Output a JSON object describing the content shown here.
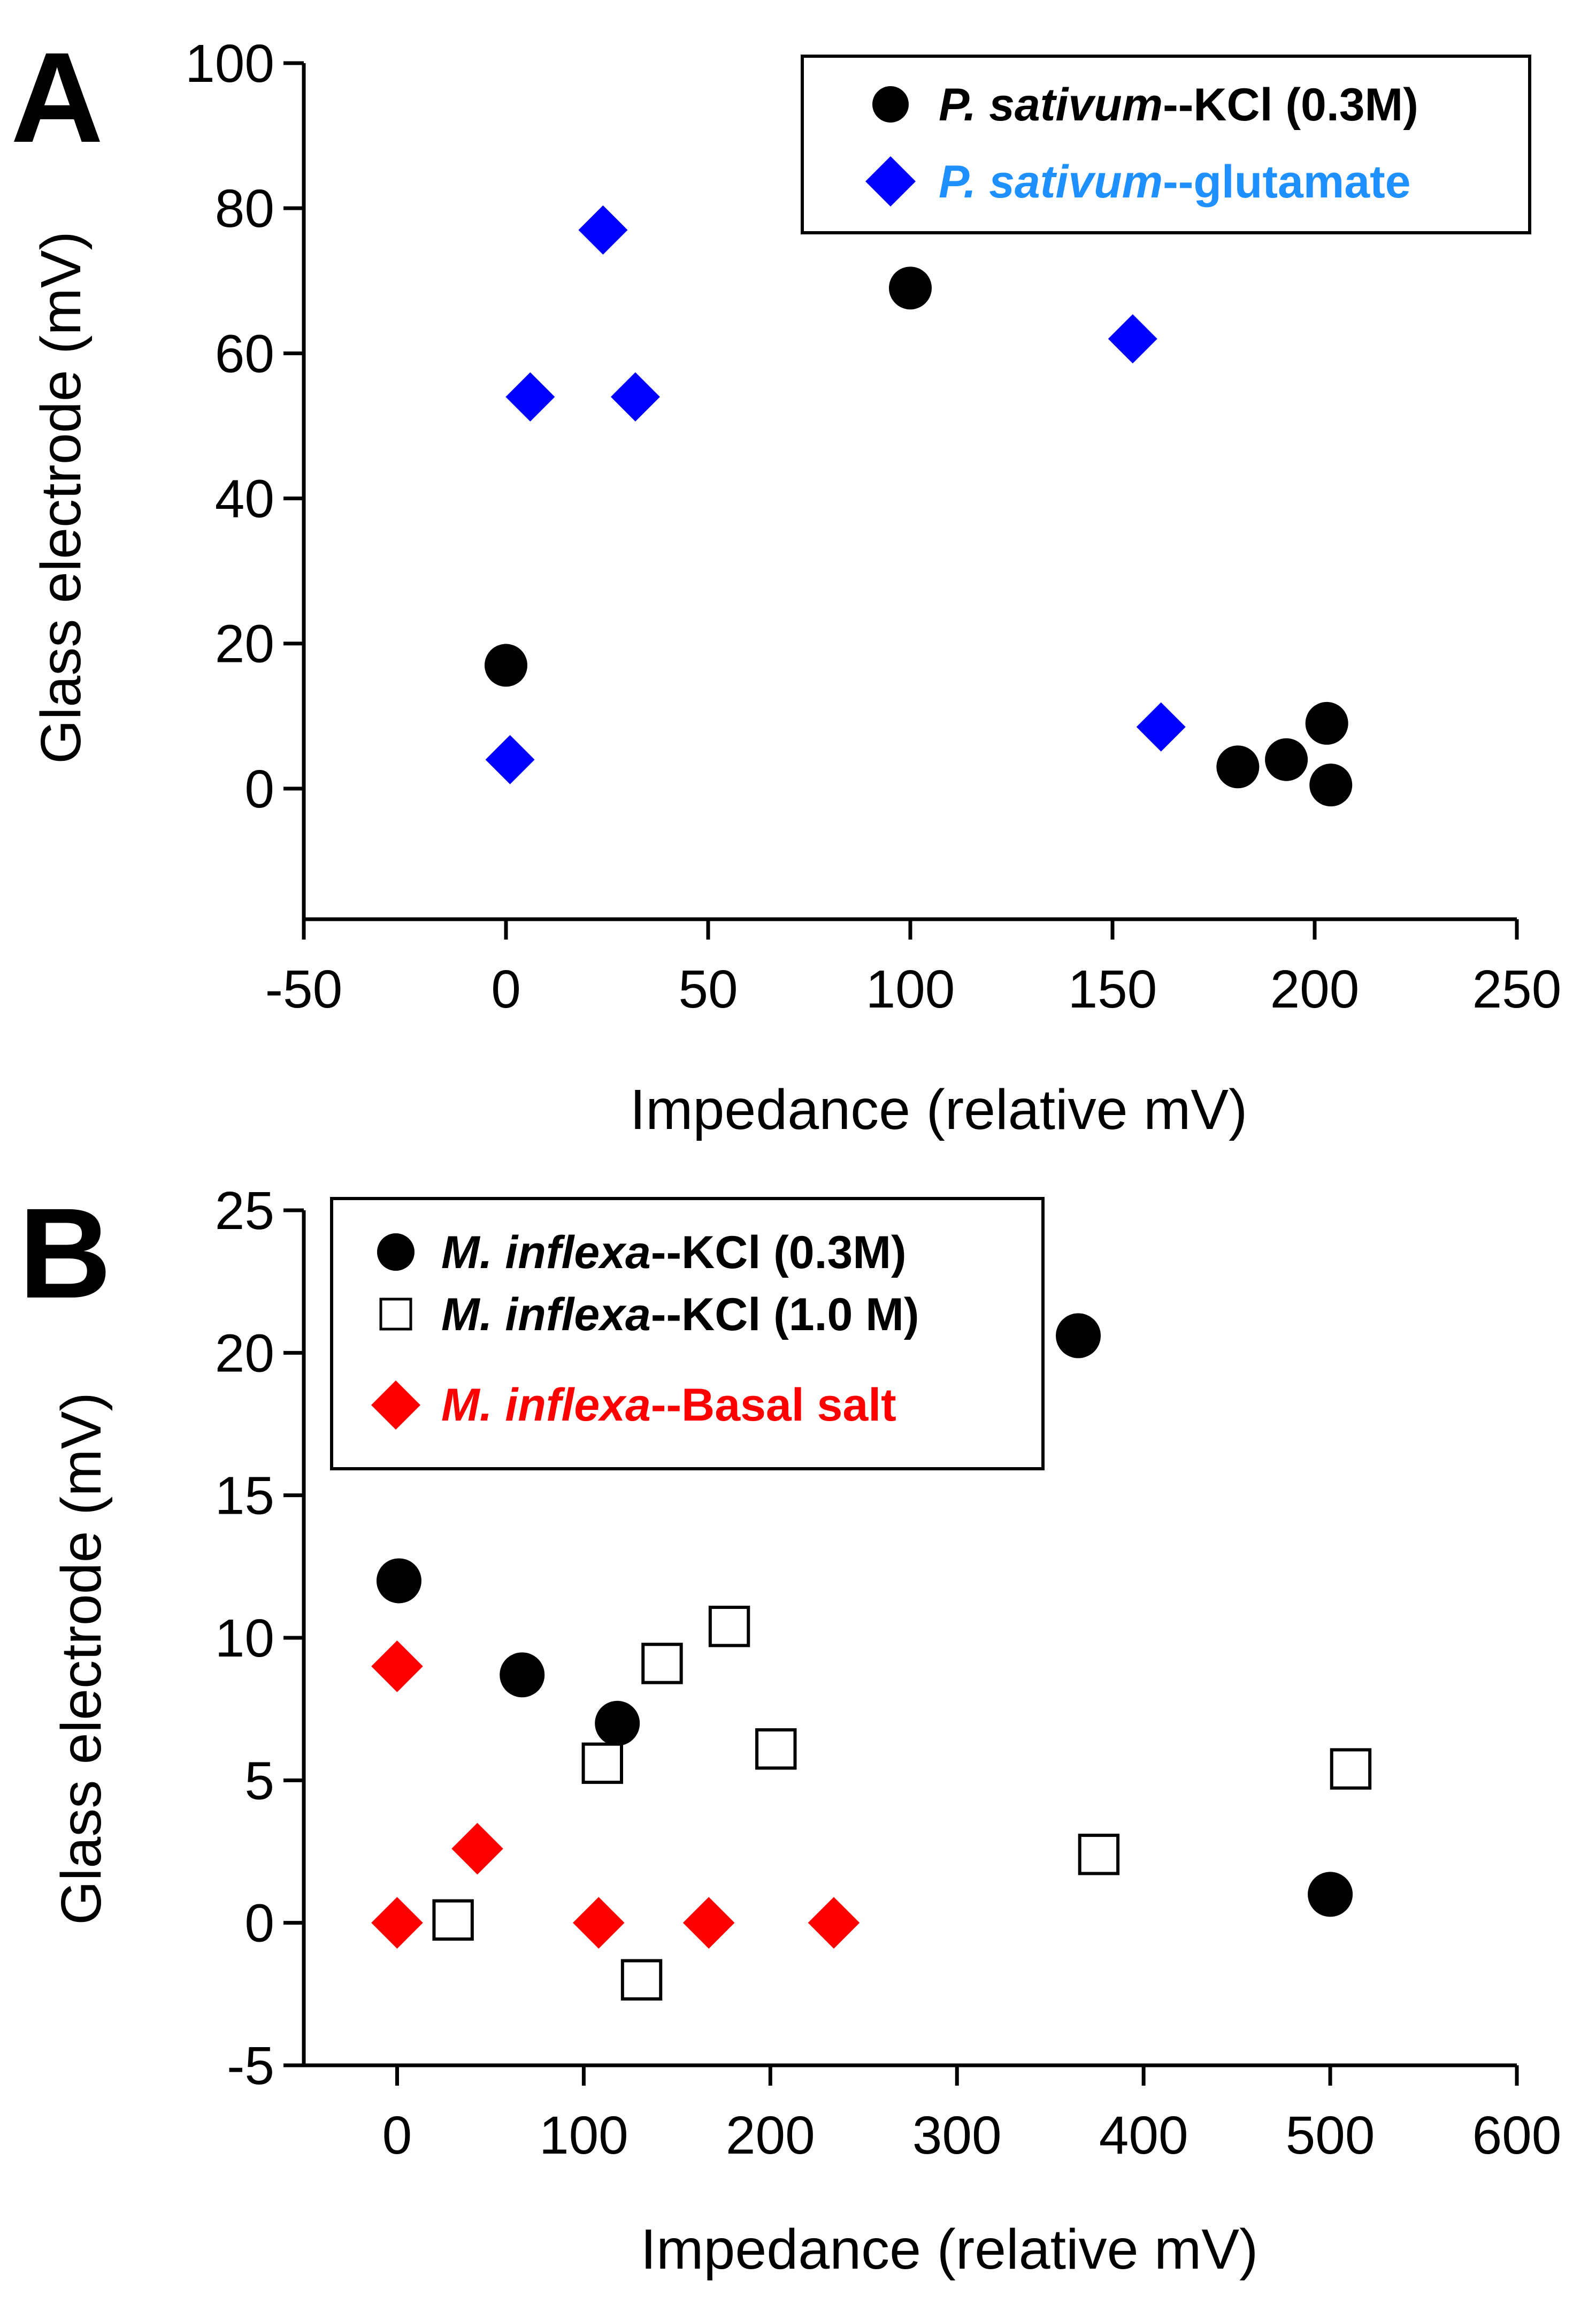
{
  "chart_data": [
    {
      "panel": "A",
      "type": "scatter",
      "xlabel": "Impedance (relative mV)",
      "ylabel": "Glass electrode (mV)",
      "xlim": [
        -50,
        250
      ],
      "ylim": [
        -18,
        100
      ],
      "xticks": [
        -50,
        0,
        50,
        100,
        150,
        200,
        250
      ],
      "yticks": [
        0,
        20,
        40,
        60,
        80,
        100
      ],
      "x_tick_labels": [
        "-50",
        "0",
        "50",
        "100",
        "150",
        "200",
        "250"
      ],
      "y_tick_labels": [
        "0",
        "20",
        "40",
        "60",
        "80",
        "100"
      ],
      "legend_position": "top-right",
      "series": [
        {
          "name": "P. sativum--KCl (0.3M)",
          "label_italic": "P. sativum",
          "label_rest": "--KCl (0.3M)",
          "marker": "circle",
          "color": "#000000",
          "text_color": "#000000",
          "x": [
            0,
            100,
            181,
            193,
            203,
            204
          ],
          "y": [
            17,
            69,
            3,
            4,
            9,
            0.5
          ]
        },
        {
          "name": "P. sativum--glutamate",
          "label_italic": "P. sativum",
          "label_rest": "--glutamate",
          "marker": "diamond",
          "color": "#0000ff",
          "text_color": "#1e90ff",
          "x": [
            1,
            6,
            24,
            32,
            155,
            162
          ],
          "y": [
            4,
            54,
            77,
            54,
            62,
            8.5
          ]
        }
      ]
    },
    {
      "panel": "B",
      "type": "scatter",
      "xlabel": "Impedance (relative mV)",
      "ylabel": "Glass electrode (mV)",
      "xlim": [
        -50,
        600
      ],
      "ylim": [
        -5,
        25
      ],
      "xticks": [
        0,
        100,
        200,
        300,
        400,
        500,
        600
      ],
      "yticks": [
        -5,
        0,
        5,
        10,
        15,
        20,
        25
      ],
      "x_tick_labels": [
        "0",
        "100",
        "200",
        "300",
        "400",
        "500",
        "600"
      ],
      "y_tick_labels": [
        "-5",
        "0",
        "5",
        "10",
        "15",
        "20",
        "25"
      ],
      "legend_position": "top-left",
      "series": [
        {
          "name": "M. inflexa--KCl (0.3M)",
          "label_italic": "M. inflexa",
          "label_rest": "--KCl (0.3M)",
          "marker": "circle",
          "color": "#000000",
          "text_color": "#000000",
          "x": [
            1,
            67,
            118,
            365,
            500
          ],
          "y": [
            12,
            8.7,
            7,
            20.6,
            1
          ]
        },
        {
          "name": "M. inflexa--KCl (1.0 M)",
          "label_italic": "M. inflexa",
          "label_rest": "--KCl (1.0 M)",
          "marker": "open-square",
          "color": "#000000",
          "text_color": "#000000",
          "x": [
            30,
            110,
            131,
            142,
            178,
            203,
            376,
            511
          ],
          "y": [
            0.1,
            5.6,
            -2,
            9.1,
            10.4,
            6.1,
            2.4,
            5.4
          ]
        },
        {
          "name": "M. inflexa--Basal salt",
          "label_italic": "M. inflexa",
          "label_rest": "--Basal salt",
          "marker": "diamond",
          "color": "#ff0000",
          "text_color": "#ff0000",
          "x": [
            0,
            0,
            43,
            108,
            167,
            234
          ],
          "y": [
            9,
            0,
            2.6,
            0,
            0,
            0
          ]
        }
      ]
    }
  ]
}
